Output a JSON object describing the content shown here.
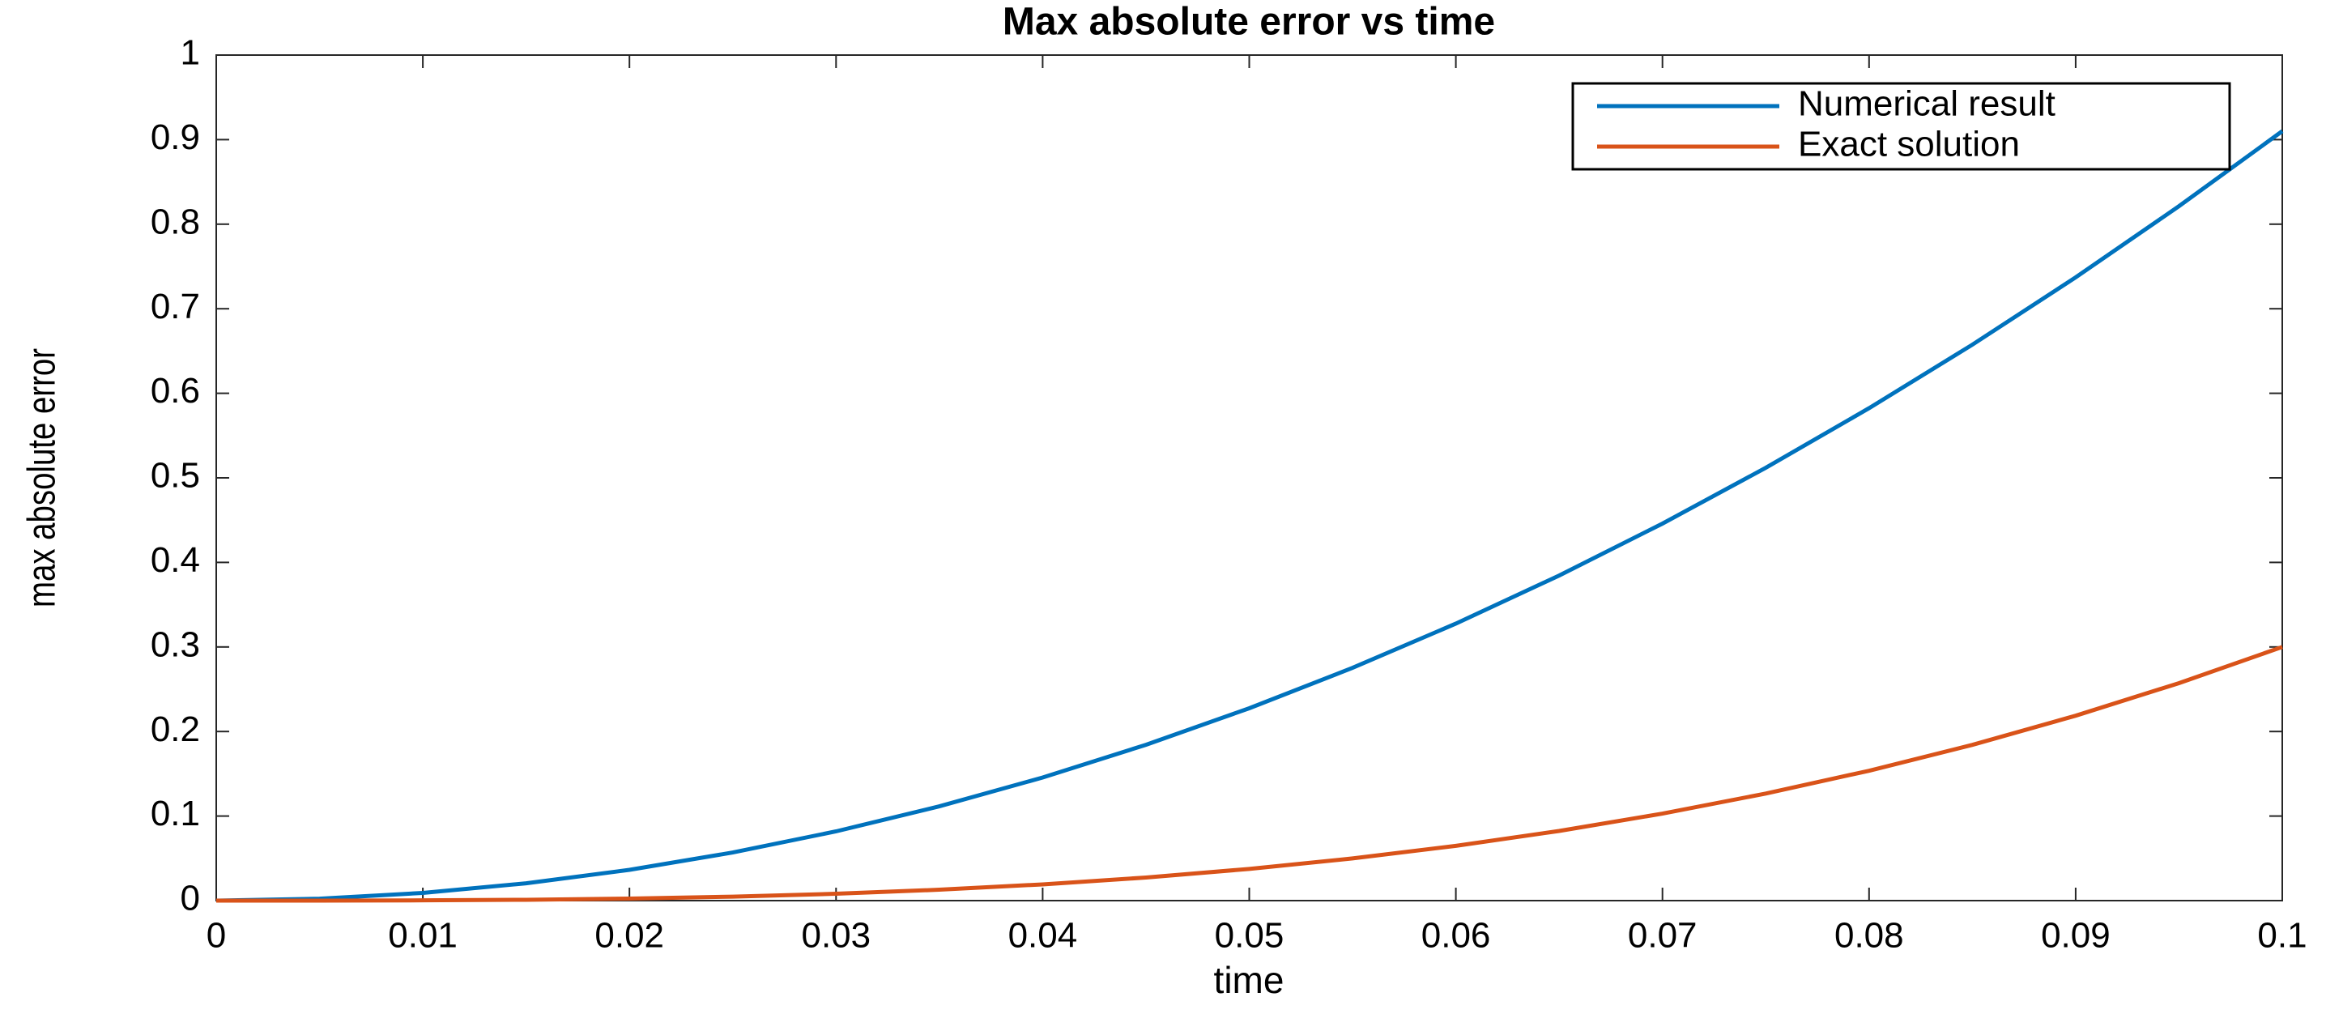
{
  "chart_data": {
    "type": "line",
    "title": "Max absolute error vs time",
    "xlabel": "time",
    "ylabel": "max absolute error",
    "x": [
      0,
      0.005,
      0.01,
      0.015,
      0.02,
      0.025,
      0.03,
      0.035,
      0.04,
      0.045,
      0.05,
      0.055,
      0.06,
      0.065,
      0.07,
      0.075,
      0.08,
      0.085,
      0.09,
      0.095,
      0.1
    ],
    "series": [
      {
        "name": "Numerical result",
        "color": "#0072bd",
        "values": [
          0,
          0.0023,
          0.0091,
          0.0205,
          0.0364,
          0.0569,
          0.0819,
          0.1115,
          0.1456,
          0.1843,
          0.2275,
          0.2753,
          0.3276,
          0.3845,
          0.4459,
          0.5119,
          0.5824,
          0.6575,
          0.7371,
          0.8213,
          0.91
        ]
      },
      {
        "name": "Exact solution",
        "color": "#d95319",
        "values": [
          0,
          4e-05,
          0.0003,
          0.001,
          0.0024,
          0.0047,
          0.0081,
          0.0129,
          0.0192,
          0.0273,
          0.0375,
          0.0499,
          0.0648,
          0.0824,
          0.1029,
          0.1266,
          0.1536,
          0.1842,
          0.2187,
          0.2572,
          0.3
        ]
      }
    ],
    "xlim": [
      0,
      0.1
    ],
    "xticks": [
      0,
      0.01,
      0.02,
      0.03,
      0.04,
      0.05,
      0.06,
      0.07,
      0.08,
      0.09,
      0.1
    ],
    "ylim": [
      0,
      1
    ],
    "yticks": [
      0,
      0.1,
      0.2,
      0.3,
      0.4,
      0.5,
      0.6,
      0.7,
      0.8,
      0.9,
      1
    ],
    "grid": false,
    "legend": "northeast"
  }
}
